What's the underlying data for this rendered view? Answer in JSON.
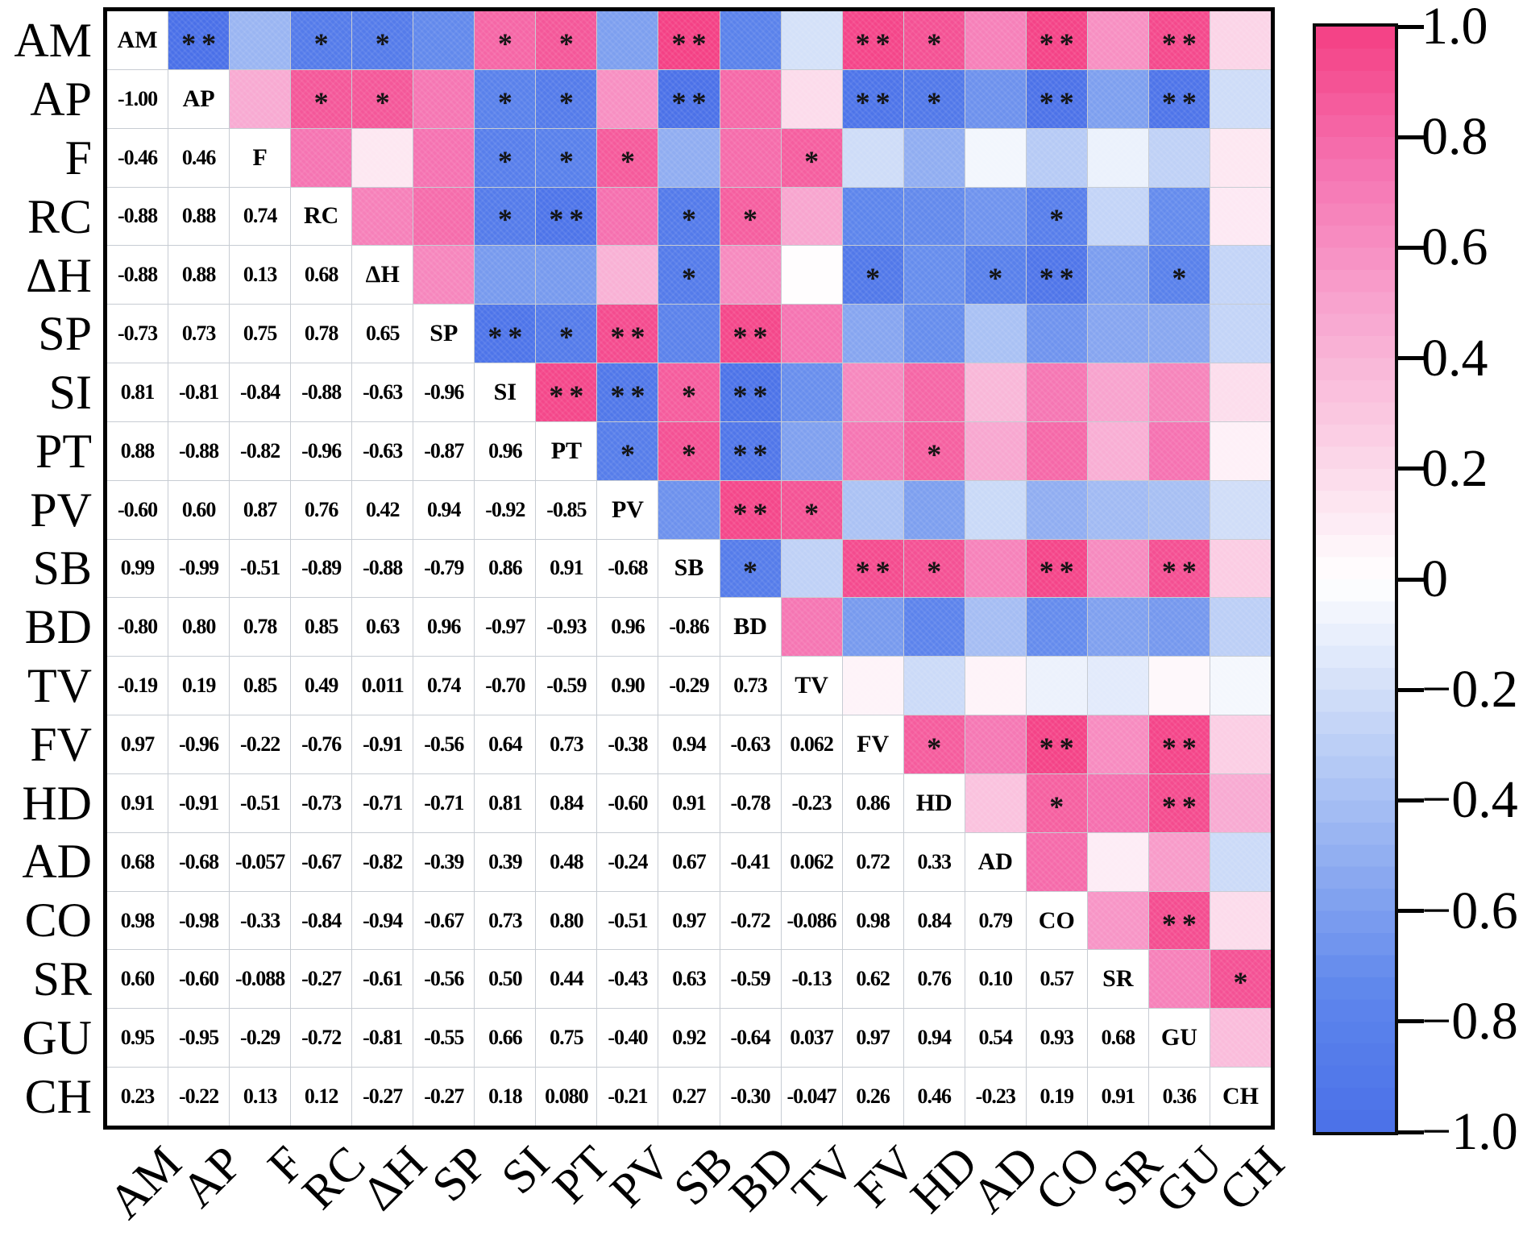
{
  "chart_data": {
    "type": "heatmap",
    "subtype": "correlation-matrix",
    "title": "",
    "grid": true,
    "legend_position": "right",
    "variables": [
      "AM",
      "AP",
      "F",
      "RC",
      "ΔH",
      "SP",
      "SI",
      "PT",
      "PV",
      "SB",
      "BD",
      "TV",
      "FV",
      "HD",
      "AD",
      "CO",
      "SR",
      "GU",
      "CH"
    ],
    "lower_triangle_values": [
      [],
      [
        "-1.00"
      ],
      [
        "-0.46",
        "0.46"
      ],
      [
        "-0.88",
        "0.88",
        "0.74"
      ],
      [
        "-0.88",
        "0.88",
        "0.13",
        "0.68"
      ],
      [
        "-0.73",
        "0.73",
        "0.75",
        "0.78",
        "0.65"
      ],
      [
        "0.81",
        "-0.81",
        "-0.84",
        "-0.88",
        "-0.63",
        "-0.96"
      ],
      [
        "0.88",
        "-0.88",
        "-0.82",
        "-0.96",
        "-0.63",
        "-0.87",
        "0.96"
      ],
      [
        "-0.60",
        "0.60",
        "0.87",
        "0.76",
        "0.42",
        "0.94",
        "-0.92",
        "-0.85"
      ],
      [
        "0.99",
        "-0.99",
        "-0.51",
        "-0.89",
        "-0.88",
        "-0.79",
        "0.86",
        "0.91",
        "-0.68"
      ],
      [
        "-0.80",
        "0.80",
        "0.78",
        "0.85",
        "0.63",
        "0.96",
        "-0.97",
        "-0.93",
        "0.96",
        "-0.86"
      ],
      [
        "-0.19",
        "0.19",
        "0.85",
        "0.49",
        "0.011",
        "0.74",
        "-0.70",
        "-0.59",
        "0.90",
        "-0.29",
        "0.73"
      ],
      [
        "0.97",
        "-0.96",
        "-0.22",
        "-0.76",
        "-0.91",
        "-0.56",
        "0.64",
        "0.73",
        "-0.38",
        "0.94",
        "-0.63",
        "0.062"
      ],
      [
        "0.91",
        "-0.91",
        "-0.51",
        "-0.73",
        "-0.71",
        "-0.71",
        "0.81",
        "0.84",
        "-0.60",
        "0.91",
        "-0.78",
        "-0.23",
        "0.86"
      ],
      [
        "0.68",
        "-0.68",
        "-0.057",
        "-0.67",
        "-0.82",
        "-0.39",
        "0.39",
        "0.48",
        "-0.24",
        "0.67",
        "-0.41",
        "0.062",
        "0.72",
        "0.33"
      ],
      [
        "0.98",
        "-0.98",
        "-0.33",
        "-0.84",
        "-0.94",
        "-0.67",
        "0.73",
        "0.80",
        "-0.51",
        "0.97",
        "-0.72",
        "-0.086",
        "0.98",
        "0.84",
        "0.79"
      ],
      [
        "0.60",
        "-0.60",
        "-0.088",
        "-0.27",
        "-0.61",
        "-0.56",
        "0.50",
        "0.44",
        "-0.43",
        "0.63",
        "-0.59",
        "-0.13",
        "0.62",
        "0.76",
        "0.10",
        "0.57"
      ],
      [
        "0.95",
        "-0.95",
        "-0.29",
        "-0.72",
        "-0.81",
        "-0.55",
        "0.66",
        "0.75",
        "-0.40",
        "0.92",
        "-0.64",
        "0.037",
        "0.97",
        "0.94",
        "0.54",
        "0.93",
        "0.68"
      ],
      [
        "0.23",
        "-0.22",
        "0.13",
        "0.12",
        "-0.27",
        "-0.27",
        "0.18",
        "0.080",
        "-0.21",
        "0.27",
        "-0.30",
        "-0.047",
        "0.26",
        "0.46",
        "-0.23",
        "0.19",
        "0.91",
        "0.36"
      ]
    ],
    "significance_upper": {
      "AM": {
        "AP": "**",
        "RC": "*",
        "ΔH": "*",
        "SI": "*",
        "PT": "*",
        "SB": "**",
        "FV": "**",
        "HD": "*",
        "CO": "**",
        "GU": "**"
      },
      "AP": {
        "RC": "*",
        "ΔH": "*",
        "SI": "*",
        "PT": "*",
        "SB": "**",
        "FV": "**",
        "HD": "*",
        "CO": "**",
        "GU": "**"
      },
      "F": {
        "SI": "*",
        "PT": "*",
        "PV": "*",
        "TV": "*"
      },
      "RC": {
        "SI": "*",
        "PT": "**",
        "SB": "*",
        "BD": "*",
        "CO": "*"
      },
      "ΔH": {
        "SB": "*",
        "FV": "*",
        "AD": "*",
        "CO": "**",
        "GU": "*"
      },
      "SP": {
        "SI": "**",
        "PT": "*",
        "PV": "**",
        "BD": "**"
      },
      "SI": {
        "PT": "**",
        "PV": "**",
        "SB": "*",
        "BD": "**"
      },
      "PT": {
        "PV": "*",
        "SB": "*",
        "BD": "**",
        "HD": "*"
      },
      "PV": {
        "BD": "**",
        "TV": "*"
      },
      "SB": {
        "BD": "*",
        "FV": "**",
        "HD": "*",
        "CO": "**",
        "GU": "**"
      },
      "FV": {
        "HD": "*",
        "CO": "**",
        "GU": "**"
      },
      "HD": {
        "CO": "*",
        "GU": "**"
      },
      "CO": {
        "GU": "**"
      },
      "SR": {
        "CH": "*"
      }
    },
    "colorbar": {
      "range": [
        -1,
        1
      ],
      "tick_labels": [
        "1.0",
        "0.8",
        "0.6",
        "0.4",
        "0.2",
        "0",
        "−0.2",
        "−0.4",
        "−0.6",
        "−0.8",
        "−1.0"
      ],
      "bands": 50
    },
    "colors": {
      "positive_max": "#f43f83",
      "negative_max": "#4a70e8",
      "zero": "#ffffff",
      "grid_line": "#c7ccd3",
      "border": "#000000",
      "positive_stops": [
        [
          0,
          "#ffffff"
        ],
        [
          0.25,
          "#fbd0e5"
        ],
        [
          0.5,
          "#f8a3ce"
        ],
        [
          0.75,
          "#f572b1"
        ],
        [
          1,
          "#f43f83"
        ]
      ],
      "negative_stops": [
        [
          0,
          "#ffffff"
        ],
        [
          0.25,
          "#c7d7f7"
        ],
        [
          0.5,
          "#92aff1"
        ],
        [
          0.75,
          "#5e86ec"
        ],
        [
          1,
          "#4a70e8"
        ]
      ]
    }
  }
}
